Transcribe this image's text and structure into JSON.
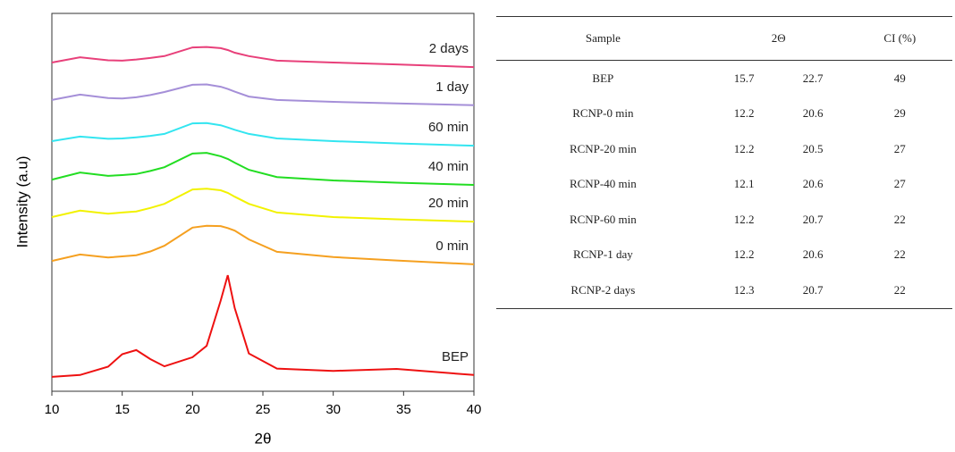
{
  "chart_data": {
    "type": "line",
    "xlabel": "2θ",
    "ylabel": "Intensity (a.u)",
    "x": [
      10,
      12,
      14,
      15,
      16,
      17,
      18,
      20,
      21,
      22,
      22.5,
      23,
      24,
      26,
      30,
      34.5,
      40
    ],
    "xlim": [
      10,
      40
    ],
    "xticks": [
      10,
      15,
      20,
      25,
      30,
      35,
      40
    ],
    "ylim": [
      0,
      100
    ],
    "series": [
      {
        "name": "2 days",
        "color": "#e8407a",
        "values": [
          87,
          88.4,
          87.6,
          87.5,
          87.8,
          88.2,
          88.7,
          91,
          91.1,
          90.8,
          90.3,
          89.6,
          88.7,
          87.5,
          87,
          86.5,
          85.8
        ]
      },
      {
        "name": "1 day",
        "color": "#a58fd8",
        "values": [
          77.1,
          78.5,
          77.6,
          77.5,
          77.8,
          78.4,
          79.2,
          81.1,
          81.2,
          80.6,
          80,
          79.3,
          78,
          77.1,
          76.6,
          76.2,
          75.7
        ]
      },
      {
        "name": "60 min",
        "color": "#33e5f0",
        "values": [
          66.2,
          67.4,
          66.8,
          66.9,
          67.2,
          67.6,
          68.1,
          70.9,
          71,
          70.4,
          69.8,
          69.2,
          68.1,
          66.9,
          66.2,
          65.6,
          65
        ]
      },
      {
        "name": "40 min",
        "color": "#22dd22",
        "values": [
          56,
          57.9,
          57,
          57.2,
          57.5,
          58.3,
          59.3,
          62.9,
          63.1,
          62.2,
          61.5,
          60.5,
          58.6,
          56.7,
          55.8,
          55.2,
          54.6
        ]
      },
      {
        "name": "20 min",
        "color": "#f2f200",
        "values": [
          46.1,
          47.8,
          47,
          47.3,
          47.6,
          48.5,
          49.6,
          53.4,
          53.6,
          53.2,
          52.5,
          51.5,
          49.6,
          47.3,
          46.1,
          45.5,
          44.9
        ]
      },
      {
        "name": "0 min",
        "color": "#f5a020",
        "values": [
          34.5,
          36.2,
          35.4,
          35.7,
          36,
          37,
          38.5,
          43.3,
          43.8,
          43.7,
          43.2,
          42.5,
          40.2,
          36.9,
          35.5,
          34.6,
          33.6
        ]
      },
      {
        "name": "BEP",
        "color": "#ee1111",
        "values": [
          3.8,
          4.3,
          6.5,
          9.8,
          10.9,
          8.5,
          6.6,
          9,
          12,
          24,
          30.7,
          22,
          10,
          6,
          5.4,
          5.9,
          4.3
        ]
      }
    ]
  },
  "table": {
    "header": [
      "Sample",
      "2Θ",
      "CI (%)"
    ],
    "rows": [
      [
        "BEP",
        "15.7",
        "22.7",
        "49"
      ],
      [
        "RCNP-0 min",
        "12.2",
        "20.6",
        "29"
      ],
      [
        "RCNP-20 min",
        "12.2",
        "20.5",
        "27"
      ],
      [
        "RCNP-40 min",
        "12.1",
        "20.6",
        "27"
      ],
      [
        "RCNP-60 min",
        "12.2",
        "20.7",
        "22"
      ],
      [
        "RCNP-1 day",
        "12.2",
        "20.6",
        "22"
      ],
      [
        "RCNP-2 days",
        "12.3",
        "20.7",
        "22"
      ]
    ]
  }
}
